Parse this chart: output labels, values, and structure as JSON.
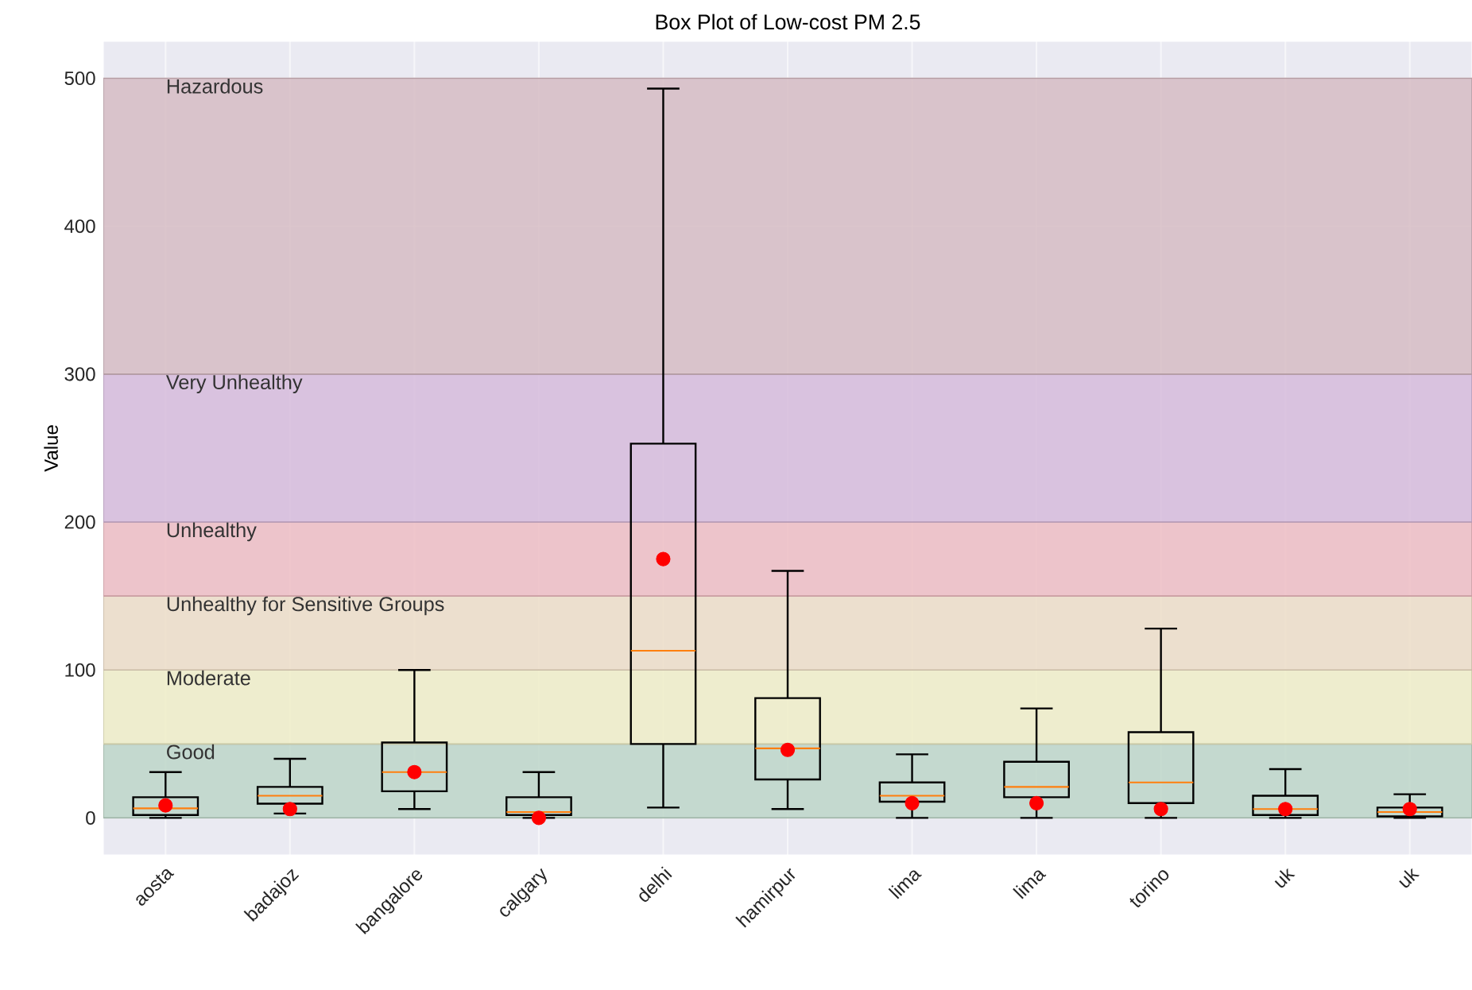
{
  "chart_data": {
    "type": "box",
    "title": "Box Plot of Low-cost PM 2.5",
    "ylabel": "Value",
    "categories": [
      "aosta",
      "badajoz",
      "bangalore",
      "calgary",
      "delhi",
      "hamirpur",
      "lima",
      "lima",
      "torino",
      "uk",
      "uk"
    ],
    "boxes": [
      {
        "low": 0,
        "q1": 2,
        "median": 6.5,
        "q3": 14,
        "high": 31,
        "mean": 8.5
      },
      {
        "low": 3,
        "q1": 9.6,
        "median": 15,
        "q3": 21,
        "high": 40,
        "mean": 6
      },
      {
        "low": 6,
        "q1": 18,
        "median": 31,
        "q3": 51,
        "high": 100,
        "mean": 31
      },
      {
        "low": 0,
        "q1": 2,
        "median": 4,
        "q3": 14,
        "high": 31,
        "mean": 0
      },
      {
        "low": 7,
        "q1": 50,
        "median": 113,
        "q3": 253,
        "high": 493,
        "mean": 175
      },
      {
        "low": 6,
        "q1": 26,
        "median": 47,
        "q3": 81,
        "high": 167,
        "mean": 46
      },
      {
        "low": 0,
        "q1": 11,
        "median": 15,
        "q3": 24,
        "high": 43,
        "mean": 10
      },
      {
        "low": 0,
        "q1": 14,
        "median": 21,
        "q3": 38,
        "high": 74,
        "mean": 10
      },
      {
        "low": 0,
        "q1": 10,
        "median": 24,
        "q3": 58,
        "high": 128,
        "mean": 6
      },
      {
        "low": 0,
        "q1": 2,
        "median": 6,
        "q3": 15,
        "high": 33,
        "mean": 6
      },
      {
        "low": 0,
        "q1": 1,
        "median": 4,
        "q3": 7,
        "high": 16,
        "mean": 6
      }
    ],
    "color": "#000000",
    "ylim": [
      -25,
      525
    ],
    "yticks": [
      0,
      100,
      200,
      300,
      400,
      500
    ],
    "grid": true,
    "bands": [
      {
        "axis": "y",
        "from": 0,
        "to": 50,
        "label": "Good",
        "color": "#bad4c5"
      },
      {
        "axis": "y",
        "from": 50,
        "to": 100,
        "label": "Moderate",
        "color": "#efedc4"
      },
      {
        "axis": "y",
        "from": 100,
        "to": 150,
        "label": "Unhealthy for Sensitive Groups",
        "color": "#ecdcc4"
      },
      {
        "axis": "y",
        "from": 150,
        "to": 200,
        "label": "Unhealthy",
        "color": "#eebac1"
      },
      {
        "axis": "y",
        "from": 200,
        "to": 300,
        "label": "Very Unhealthy",
        "color": "#d5b8da"
      },
      {
        "axis": "y",
        "from": 300,
        "to": 500,
        "label": "Hazardous",
        "color": "#d5b9c1"
      }
    ]
  }
}
